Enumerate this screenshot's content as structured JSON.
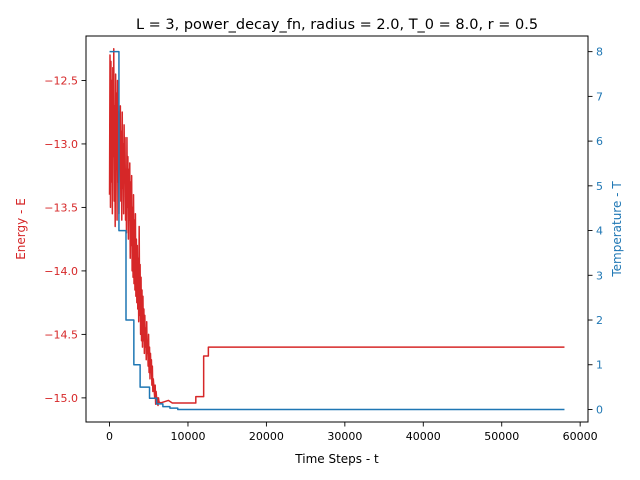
{
  "chart_data": {
    "type": "line",
    "title": "L = 3, power_decay_fn, radius = 2.0, T_0 = 8.0, r = 0.5",
    "xlabel": "Time Steps - t",
    "ylabel_left": "Energy - E",
    "ylabel_right": "Temperature - T",
    "xlim": [
      -3000,
      61000
    ],
    "ylim_left": [
      -15.19,
      -12.15
    ],
    "ylim_right": [
      -0.28,
      8.35
    ],
    "x_ticks": [
      0,
      10000,
      20000,
      30000,
      40000,
      50000,
      60000
    ],
    "x_tick_labels": [
      "0",
      "10000",
      "20000",
      "30000",
      "40000",
      "50000",
      "60000"
    ],
    "y_left_ticks": [
      -12.5,
      -13.0,
      -13.5,
      -14.0,
      -14.5,
      -15.0
    ],
    "y_left_tick_labels": [
      "−12.5",
      "−13.0",
      "−13.5",
      "−14.0",
      "−14.5",
      "−15.0"
    ],
    "y_right_ticks": [
      0,
      1,
      2,
      3,
      4,
      5,
      6,
      7,
      8
    ],
    "y_right_tick_labels": [
      "0",
      "1",
      "2",
      "3",
      "4",
      "5",
      "6",
      "7",
      "8"
    ],
    "grid": false,
    "legend": "none",
    "colors": {
      "energy": "#d62728",
      "temperature": "#1f77b4"
    },
    "series": [
      {
        "axis": "left",
        "color": "#d62728",
        "x": [
          0,
          60,
          120,
          180,
          240,
          300,
          360,
          420,
          480,
          540,
          600,
          660,
          720,
          780,
          840,
          900,
          960,
          1020,
          1080,
          1140,
          1200,
          1260,
          1320,
          1380,
          1440,
          1500,
          1560,
          1620,
          1680,
          1740,
          1800,
          1860,
          1920,
          1980,
          2040,
          2100,
          2160,
          2220,
          2280,
          2340,
          2400,
          2460,
          2520,
          2580,
          2640,
          2700,
          2760,
          2820,
          2880,
          2940,
          3000,
          3060,
          3120,
          3180,
          3240,
          3300,
          3360,
          3420,
          3480,
          3540,
          3600,
          3660,
          3720,
          3780,
          3840,
          3900,
          3960,
          4020,
          4080,
          4140,
          4200,
          4260,
          4320,
          4380,
          4440,
          4500,
          4560,
          4620,
          4680,
          4740,
          4800,
          4860,
          4920,
          4980,
          5040,
          5100,
          5160,
          5220,
          5280,
          5340,
          5400,
          5460,
          5520,
          5580,
          5640,
          5700,
          5760,
          5820,
          5880,
          5940,
          6000,
          6060,
          6120,
          6180,
          6240,
          6300,
          6500,
          7000,
          7500,
          8000,
          8500,
          9000,
          10000,
          11000,
          11000,
          12000,
          12000,
          12600,
          12600,
          13000,
          13000,
          58000
        ],
        "y": [
          -13.4,
          -12.3,
          -13.5,
          -12.35,
          -13.3,
          -12.5,
          -13.55,
          -12.4,
          -13.1,
          -12.25,
          -13.45,
          -12.7,
          -13.65,
          -12.45,
          -13.2,
          -12.6,
          -13.6,
          -12.5,
          -13.3,
          -12.75,
          -13.55,
          -12.8,
          -13.0,
          -12.7,
          -13.45,
          -12.9,
          -13.6,
          -12.75,
          -13.35,
          -13.0,
          -13.55,
          -12.85,
          -13.25,
          -12.95,
          -13.6,
          -13.2,
          -13.7,
          -12.95,
          -13.5,
          -13.1,
          -13.75,
          -13.2,
          -13.6,
          -13.15,
          -13.9,
          -13.3,
          -13.8,
          -13.25,
          -14.0,
          -13.5,
          -14.05,
          -13.4,
          -14.1,
          -13.6,
          -14.15,
          -13.55,
          -14.2,
          -13.75,
          -14.25,
          -13.8,
          -14.3,
          -13.9,
          -14.4,
          -13.65,
          -14.35,
          -13.95,
          -14.5,
          -14.05,
          -14.55,
          -14.15,
          -14.6,
          -14.2,
          -14.55,
          -14.3,
          -14.65,
          -14.35,
          -14.6,
          -14.45,
          -14.7,
          -14.4,
          -14.65,
          -14.55,
          -14.75,
          -14.5,
          -14.8,
          -14.6,
          -14.85,
          -14.65,
          -14.8,
          -14.7,
          -14.9,
          -14.75,
          -14.95,
          -14.85,
          -14.9,
          -14.95,
          -15.0,
          -14.9,
          -15.05,
          -14.95,
          -15.0,
          -15.05,
          -15.0,
          -15.06,
          -15.0,
          -15.03,
          -15.04,
          -15.03,
          -15.02,
          -15.04,
          -15.04,
          -15.04,
          -15.04,
          -15.04,
          -14.99,
          -14.99,
          -14.67,
          -14.67,
          -14.6,
          -14.6,
          -14.6,
          -14.6
        ]
      },
      {
        "axis": "right",
        "color": "#1f77b4",
        "x": [
          0,
          1200,
          1200,
          2100,
          2100,
          3100,
          3100,
          3900,
          3900,
          5100,
          5100,
          6000,
          6000,
          6800,
          6800,
          7700,
          7700,
          8700,
          8700,
          58000
        ],
        "y": [
          8,
          8,
          4,
          4,
          2,
          2,
          1,
          1,
          0.5,
          0.5,
          0.25,
          0.25,
          0.125,
          0.125,
          0.0625,
          0.0625,
          0.03125,
          0.03125,
          0,
          0
        ]
      }
    ]
  }
}
